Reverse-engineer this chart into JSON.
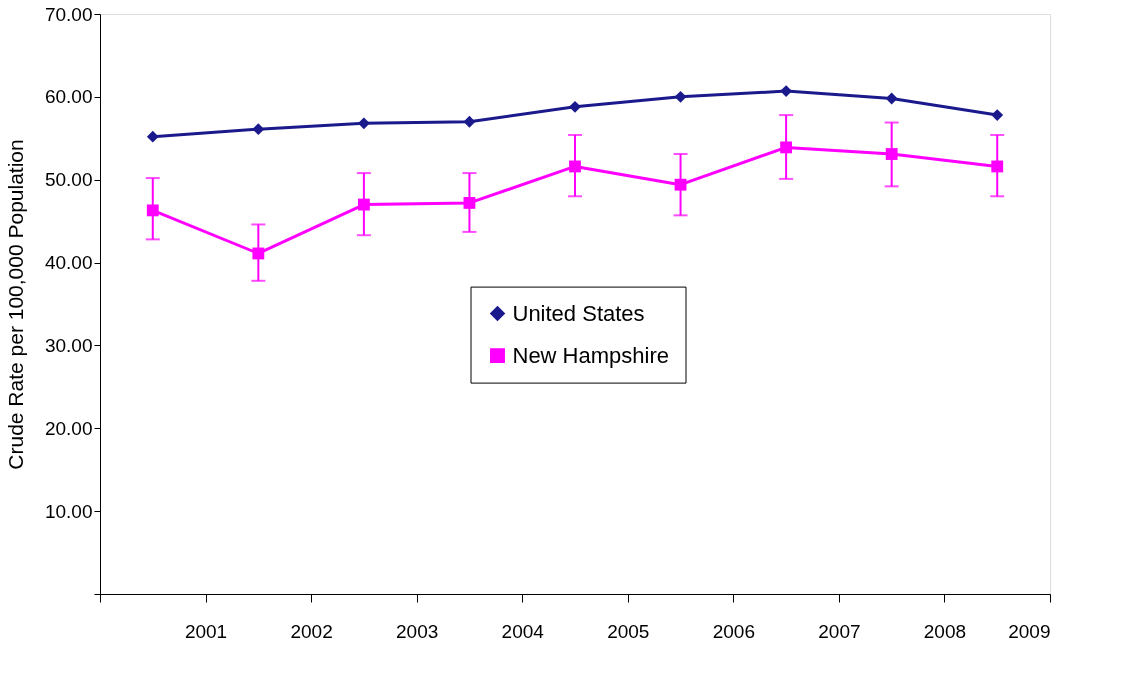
{
  "chart_data": {
    "type": "line",
    "ylabel": "Crude Rate per 100,000 Population",
    "x": [
      2000.5,
      2001.5,
      2002.5,
      2003.5,
      2004.5,
      2005.5,
      2006.5,
      2007.5,
      2008.5
    ],
    "xlim": [
      2000,
      2009
    ],
    "xticks": [
      {
        "value": 2000,
        "label": null
      },
      2001,
      2002,
      2003,
      2004,
      2005,
      2006,
      2007,
      2008,
      2009
    ],
    "ylim": [
      0,
      70
    ],
    "yticks": [
      {
        "value": 0,
        "label": null
      },
      {
        "value": 10,
        "label": "10.00"
      },
      {
        "value": 20,
        "label": "20.00"
      },
      {
        "value": 30,
        "label": "30.00"
      },
      {
        "value": 40,
        "label": "40.00"
      },
      {
        "value": 50,
        "label": "50.00"
      },
      {
        "value": 60,
        "label": "60.00"
      },
      {
        "value": 70,
        "label": "70.00"
      }
    ],
    "grid": false,
    "legend": "center",
    "series": [
      {
        "name": "United States",
        "color": "#1a1a8c",
        "marker": "diamond",
        "values": [
          55.2,
          56.1,
          56.8,
          57.0,
          58.8,
          60.0,
          60.7,
          59.8,
          57.8
        ]
      },
      {
        "name": "New Hampshire",
        "color": "#ff00ff",
        "marker": "square",
        "values": [
          46.3,
          41.1,
          47.0,
          47.2,
          51.6,
          49.4,
          53.9,
          53.1,
          51.6
        ],
        "errors": [
          [
            42.8,
            50.2
          ],
          [
            37.8,
            44.6
          ],
          [
            43.3,
            50.8
          ],
          [
            43.7,
            50.8
          ],
          [
            48.0,
            55.4
          ],
          [
            45.7,
            53.1
          ],
          [
            50.1,
            57.8
          ],
          [
            49.2,
            56.9
          ],
          [
            48.0,
            55.4
          ]
        ]
      }
    ]
  }
}
